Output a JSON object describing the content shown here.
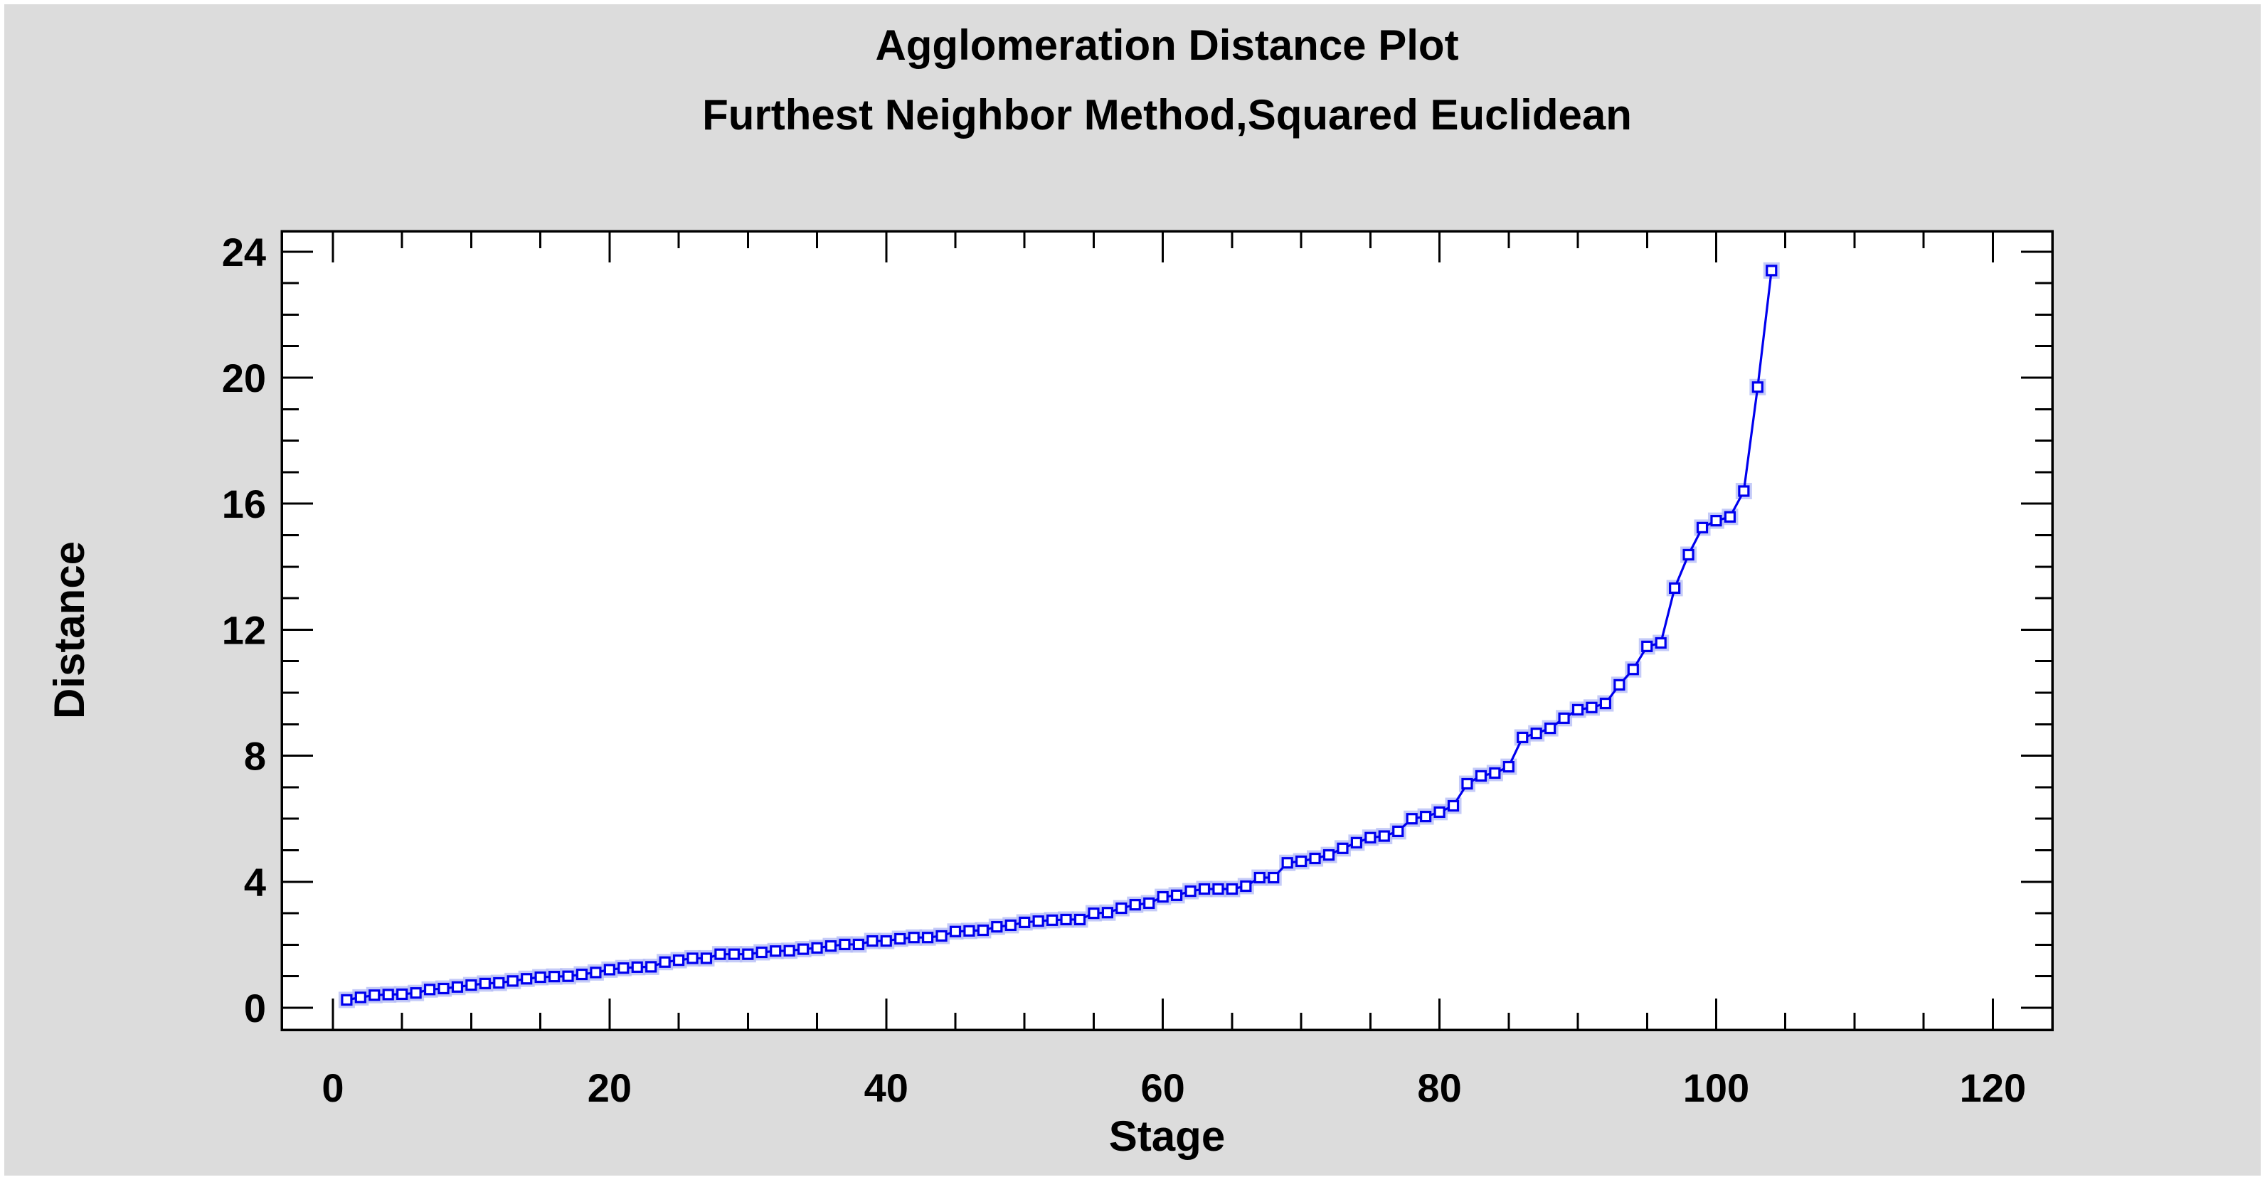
{
  "panel": {
    "page_background": "#ffffff",
    "background": "#dcdcdc",
    "plot_background": "#ffffff",
    "frame_color": "#000000",
    "text_color": "#000000"
  },
  "chart_data": {
    "type": "line",
    "title": "Agglomeration Distance Plot",
    "subtitle": "Furthest Neighbor Method,Squared Euclidean",
    "xlabel": "Stage",
    "ylabel": "Distance",
    "grid": false,
    "legend": "none",
    "xlim": [
      -3.7,
      124.3
    ],
    "ylim": [
      -0.7,
      24.65
    ],
    "x_ticks": [
      0,
      20,
      40,
      60,
      80,
      100,
      120
    ],
    "x_minor_step": 5,
    "y_ticks": [
      0,
      4,
      8,
      12,
      16,
      20,
      24
    ],
    "y_minor_step": 1,
    "series": [
      {
        "name": "Agglomeration distance",
        "color": "#0000ee",
        "marker": "open-square",
        "marker_fill": "#ffffff",
        "marker_halo_color": "#b2baf6",
        "x": [
          1,
          2,
          3,
          4,
          5,
          6,
          7,
          8,
          9,
          10,
          11,
          12,
          13,
          14,
          15,
          16,
          17,
          18,
          19,
          20,
          21,
          22,
          23,
          24,
          25,
          26,
          27,
          28,
          29,
          30,
          31,
          32,
          33,
          34,
          35,
          36,
          37,
          38,
          39,
          40,
          41,
          42,
          43,
          44,
          45,
          46,
          47,
          48,
          49,
          50,
          51,
          52,
          53,
          54,
          55,
          56,
          57,
          58,
          59,
          60,
          61,
          62,
          63,
          64,
          65,
          66,
          67,
          68,
          69,
          70,
          71,
          72,
          73,
          74,
          75,
          76,
          77,
          78,
          79,
          80,
          81,
          82,
          83,
          84,
          85,
          86,
          87,
          88,
          89,
          90,
          91,
          92,
          93,
          94,
          95,
          96,
          97,
          98,
          99,
          100,
          101,
          102,
          103,
          104
        ],
        "values": [
          0.25,
          0.33,
          0.4,
          0.42,
          0.43,
          0.47,
          0.58,
          0.61,
          0.66,
          0.72,
          0.77,
          0.79,
          0.85,
          0.92,
          0.97,
          0.99,
          1.0,
          1.06,
          1.12,
          1.21,
          1.26,
          1.29,
          1.3,
          1.45,
          1.51,
          1.57,
          1.57,
          1.7,
          1.7,
          1.7,
          1.76,
          1.8,
          1.81,
          1.86,
          1.9,
          1.96,
          2.01,
          2.01,
          2.12,
          2.12,
          2.19,
          2.23,
          2.23,
          2.28,
          2.42,
          2.44,
          2.46,
          2.57,
          2.62,
          2.71,
          2.75,
          2.78,
          2.8,
          2.8,
          3.0,
          3.02,
          3.16,
          3.27,
          3.32,
          3.52,
          3.57,
          3.7,
          3.77,
          3.77,
          3.77,
          3.86,
          4.13,
          4.13,
          4.6,
          4.65,
          4.74,
          4.85,
          5.06,
          5.24,
          5.4,
          5.45,
          5.6,
          6.0,
          6.07,
          6.21,
          6.41,
          7.11,
          7.36,
          7.45,
          7.65,
          8.58,
          8.71,
          8.87,
          9.19,
          9.46,
          9.53,
          9.66,
          10.25,
          10.74,
          11.47,
          11.58,
          13.32,
          14.38,
          15.24,
          15.46,
          15.58,
          16.4,
          19.7,
          23.4
        ]
      }
    ]
  }
}
